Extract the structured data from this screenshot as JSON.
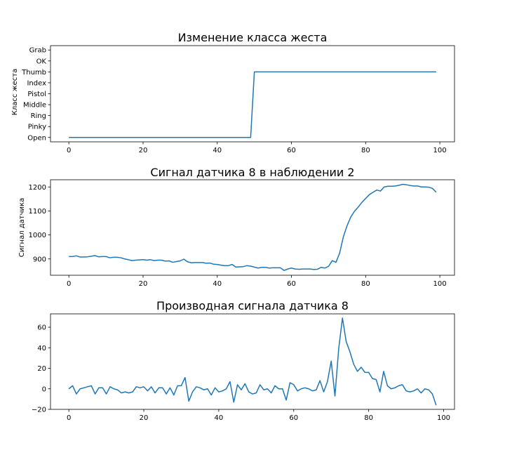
{
  "chart_data": [
    {
      "type": "line",
      "title": "Изменение класса жеста",
      "xlabel": "",
      "ylabel": "Класс жеста",
      "xlim": [
        -4.95,
        103.95
      ],
      "ylim": [
        -0.4,
        8.4
      ],
      "xticks": [
        0,
        20,
        40,
        60,
        80,
        100
      ],
      "yticks": [
        0,
        1,
        2,
        3,
        4,
        5,
        6,
        7,
        8
      ],
      "ytick_labels": [
        "Open",
        "Pinky",
        "Ring",
        "Middle",
        "Pistol",
        "Index",
        "Thumb",
        "OK",
        "Grab"
      ],
      "color": "#1f77b4",
      "series": [
        {
          "x": [
            0,
            49,
            50,
            99
          ],
          "values": [
            0,
            0,
            6,
            6
          ]
        }
      ]
    },
    {
      "type": "line",
      "title": "Сигнал датчика 8 в наблюдении 2",
      "xlabel": "",
      "ylabel": "Сигнал датчика",
      "xlim": [
        -4.95,
        103.95
      ],
      "ylim": [
        832,
        1230
      ],
      "xticks": [
        0,
        20,
        40,
        60,
        80,
        100
      ],
      "yticks": [
        900,
        1000,
        1100,
        1200
      ],
      "color": "#1f77b4",
      "series": [
        {
          "values": [
            910,
            910,
            913,
            908,
            908,
            909,
            911,
            914,
            909,
            910,
            910,
            905,
            907,
            907,
            905,
            900,
            897,
            893,
            895,
            896,
            897,
            895,
            897,
            893,
            895,
            895,
            891,
            892,
            886,
            889,
            892,
            899,
            888,
            884,
            885,
            885,
            885,
            882,
            883,
            878,
            877,
            874,
            872,
            872,
            877,
            866,
            867,
            868,
            872,
            870,
            866,
            862,
            865,
            865,
            862,
            863,
            863,
            863,
            852,
            858,
            862,
            858,
            857,
            858,
            858,
            858,
            856,
            857,
            865,
            862,
            869,
            893,
            886,
            925,
            993,
            1039,
            1075,
            1099,
            1116,
            1136,
            1152,
            1168,
            1178,
            1187,
            1183,
            1200,
            1203,
            1203,
            1204,
            1207,
            1211,
            1209,
            1206,
            1204,
            1204,
            1200,
            1200,
            1199,
            1194,
            1178
          ]
        }
      ]
    },
    {
      "type": "line",
      "title": "Производная сигнала датчика 8",
      "xlabel": "",
      "ylabel": "",
      "xlim": [
        -4.9,
        102.9
      ],
      "ylim": [
        -20,
        73
      ],
      "xticks": [
        0,
        20,
        40,
        60,
        80,
        100
      ],
      "yticks": [
        -20,
        0,
        20,
        40,
        60
      ],
      "color": "#1f77b4",
      "series": [
        {
          "values": [
            0,
            3,
            -5,
            0,
            1,
            2,
            3,
            -5,
            1,
            1,
            -5,
            2,
            0,
            -1,
            -4,
            -3,
            -4,
            -3,
            2,
            1,
            2,
            -2,
            2,
            -4,
            1,
            1,
            -5,
            1,
            -6,
            3,
            3,
            11,
            -12,
            -3,
            2,
            1,
            -1,
            0,
            -6,
            1,
            -3,
            -2,
            0,
            7,
            -13,
            4,
            -1,
            5,
            -3,
            -5,
            -4,
            4,
            -1,
            0,
            -4,
            3,
            0,
            0,
            -11,
            6,
            4,
            -2,
            0,
            1,
            0,
            -2,
            -1,
            8,
            -3,
            7,
            27,
            -7,
            39,
            69,
            46,
            36,
            24,
            17,
            21,
            16,
            16,
            10,
            9,
            -3,
            17,
            3,
            0,
            1,
            3,
            4,
            -2,
            -3,
            -2,
            0,
            -4,
            0,
            -1,
            -5,
            -16
          ]
        }
      ]
    }
  ]
}
